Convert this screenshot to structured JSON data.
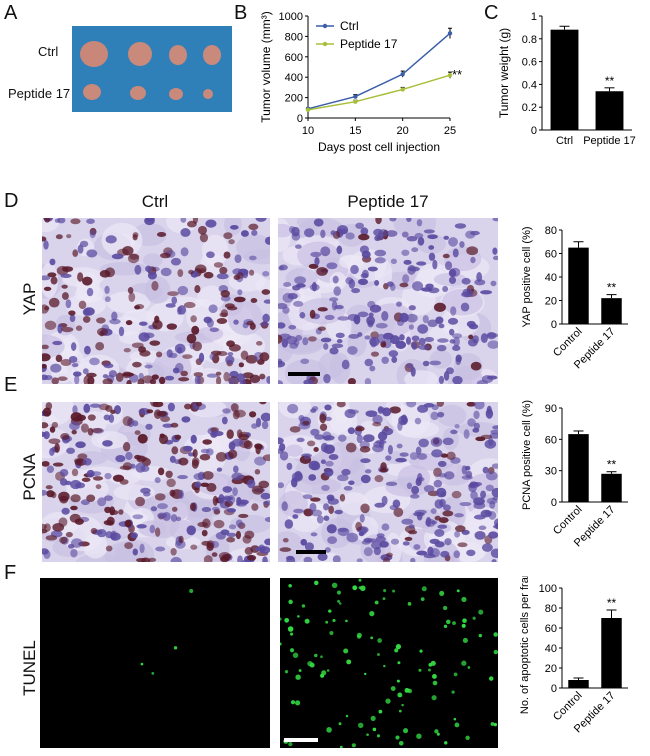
{
  "panels": {
    "A": {
      "letter": "A",
      "row_labels": [
        "Ctrl",
        "Peptide 17"
      ],
      "background": "#2f7fb8"
    },
    "B": {
      "letter": "B"
    },
    "C": {
      "letter": "C"
    },
    "D": {
      "letter": "D",
      "row_label": "YAP"
    },
    "E": {
      "letter": "E",
      "row_label": "PCNA"
    },
    "F": {
      "letter": "F",
      "row_label": "TUNEL"
    }
  },
  "column_headers": {
    "ctrl": "Ctrl",
    "peptide": "Peptide 17"
  },
  "colors": {
    "ctrl_line": "#3a5fa8",
    "peptide_line": "#a8bf3a",
    "bar": "#000000",
    "ihc_bg": "#d9d4ec",
    "ihc_brown": "#5a1a2a",
    "ihc_blue": "#5a4aa0",
    "tunel_bg": "#000000",
    "tunel_green": "#33dd44"
  },
  "chart_data": [
    {
      "id": "B",
      "type": "line",
      "ylabel": "Tumor volume (mm³)",
      "xlabel": "Days post cell injection",
      "x": [
        10,
        15,
        20,
        25
      ],
      "xlim": [
        10,
        25
      ],
      "ylim": [
        0,
        1000
      ],
      "yticks": [
        0,
        200,
        400,
        600,
        800,
        1000
      ],
      "xticks": [
        10,
        15,
        20,
        25
      ],
      "legend_position": "top-left",
      "series": [
        {
          "name": "Ctrl",
          "values": [
            90,
            210,
            430,
            830
          ],
          "errors": [
            10,
            20,
            30,
            50
          ]
        },
        {
          "name": "Peptide 17",
          "values": [
            80,
            160,
            280,
            420
          ],
          "errors": [
            10,
            15,
            20,
            30
          ]
        }
      ],
      "annotation": "**"
    },
    {
      "id": "C",
      "type": "bar",
      "ylabel": "Tumor weight (g)",
      "categories": [
        "Ctrl",
        "Peptide 17"
      ],
      "values": [
        0.88,
        0.34
      ],
      "errors": [
        0.03,
        0.03
      ],
      "ylim": [
        0,
        1.0
      ],
      "yticks": [
        "0",
        "0.2",
        "0.4",
        "0.6",
        "0.8",
        "1"
      ],
      "annotation": "**"
    },
    {
      "id": "D",
      "type": "bar",
      "ylabel": "YAP positive cell (%)",
      "categories": [
        "Control",
        "Peptide 17"
      ],
      "values": [
        65,
        22
      ],
      "errors": [
        5,
        3
      ],
      "ylim": [
        0,
        80
      ],
      "yticks": [
        "0",
        "20",
        "40",
        "60",
        "80"
      ],
      "annotation": "**"
    },
    {
      "id": "E",
      "type": "bar",
      "ylabel": "PCNA positive cell (%)",
      "categories": [
        "Control",
        "Peptide 17"
      ],
      "values": [
        65,
        27
      ],
      "errors": [
        3,
        2
      ],
      "ylim": [
        0,
        90
      ],
      "yticks": [
        "0",
        "30",
        "60",
        "90"
      ],
      "annotation": "**"
    },
    {
      "id": "F",
      "type": "bar",
      "ylabel": "No. of apoptotic cells per frame",
      "categories": [
        "Control",
        "Peptide 17"
      ],
      "values": [
        8,
        70
      ],
      "errors": [
        2,
        8
      ],
      "ylim": [
        0,
        100
      ],
      "yticks": [
        "0",
        "20",
        "40",
        "60",
        "80",
        "100"
      ],
      "annotation": "**"
    }
  ]
}
